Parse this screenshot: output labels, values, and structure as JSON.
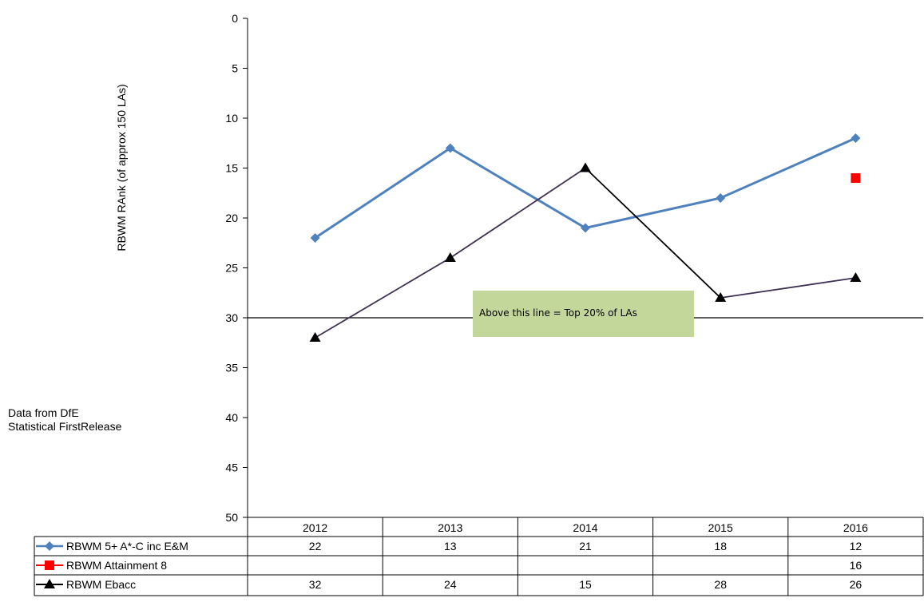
{
  "source_note": [
    "Data from DfE",
    "Statistical FirstRelease"
  ],
  "annotation": "Above this line = Top 20% of LAs",
  "colors": {
    "gcse": "#4F81BD",
    "attainment8": "#FF0000",
    "ebacc_line": "#3F3151",
    "ebacc_marker": "#000000",
    "annotation_fill": "#C4D79B"
  },
  "chart_data": {
    "type": "line",
    "title": "",
    "xlabel": "",
    "ylabel": "RBWM RAnk (of approx 150 LAs)",
    "categories": [
      "2012",
      "2013",
      "2014",
      "2015",
      "2016"
    ],
    "ylim": [
      0,
      50
    ],
    "y_inverted": true,
    "y_ticks": [
      0,
      5,
      10,
      15,
      20,
      25,
      30,
      35,
      40,
      45,
      50
    ],
    "reference_line": 30,
    "grid": false,
    "legend": "data-table-below",
    "series": [
      {
        "name": "RBWM 5+ A*-C inc E&M",
        "values": [
          22,
          13,
          21,
          18,
          12
        ],
        "marker": "diamond"
      },
      {
        "name": "RBWM Attainment 8",
        "values": [
          null,
          null,
          null,
          null,
          16
        ],
        "marker": "square"
      },
      {
        "name": "RBWM Ebacc",
        "values": [
          32,
          24,
          15,
          28,
          26
        ],
        "marker": "triangle"
      }
    ]
  }
}
